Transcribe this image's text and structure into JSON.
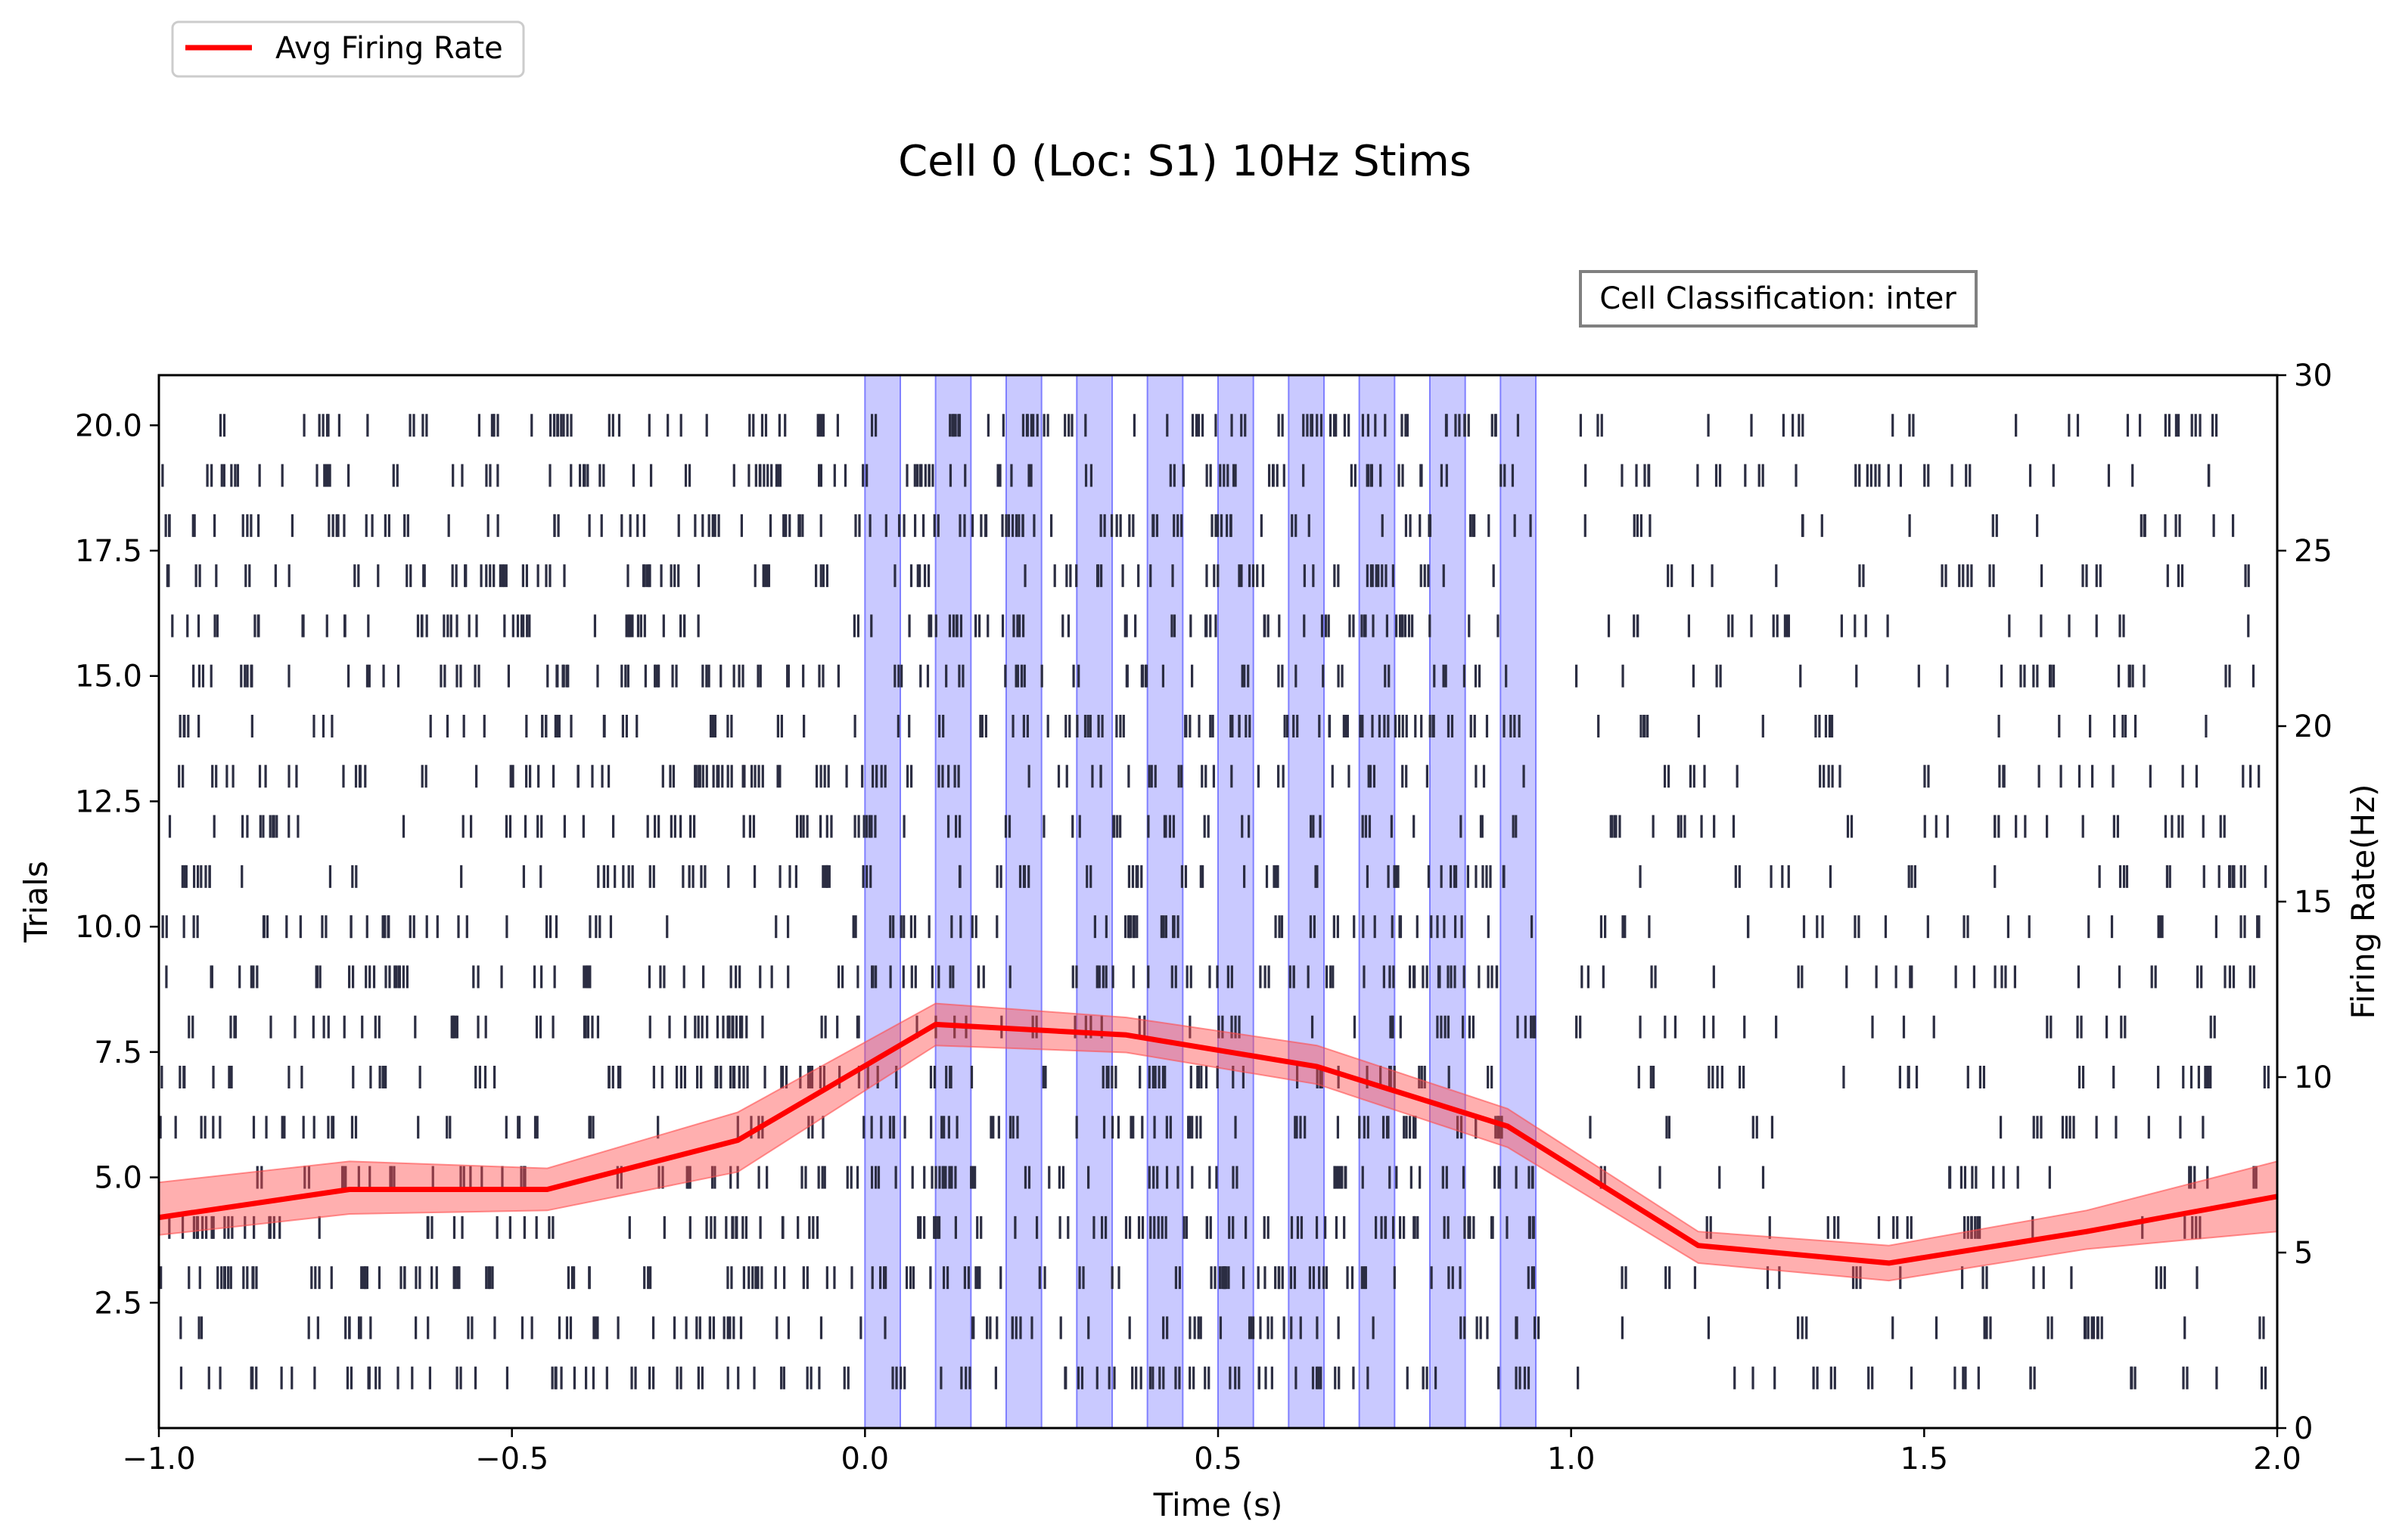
{
  "chart_data": {
    "type": "raster",
    "title": "Cell 0 (Loc: S1) 10Hz Stims",
    "xlabel": "Time (s)",
    "ylabel_left": "Trials",
    "ylabel_right": "Firing Rate(Hz)",
    "xlim": [
      -1.0,
      2.0
    ],
    "ylim_left": [
      0.0,
      21.0
    ],
    "ylim_right": [
      0,
      30
    ],
    "x_ticks": [
      -1.0,
      -0.5,
      0.0,
      0.5,
      1.0,
      1.5,
      2.0
    ],
    "x_tick_labels": [
      "−1.0",
      "−0.5",
      "0.0",
      "0.5",
      "1.0",
      "1.5",
      "2.0"
    ],
    "y_left_ticks": [
      2.5,
      5.0,
      7.5,
      10.0,
      12.5,
      15.0,
      17.5,
      20.0
    ],
    "y_left_tick_labels": [
      "2.5",
      "5.0",
      "7.5",
      "10.0",
      "12.5",
      "15.0",
      "17.5",
      "20.0"
    ],
    "y_right_ticks": [
      0,
      5,
      10,
      15,
      20,
      25,
      30
    ],
    "y_right_tick_labels": [
      "0",
      "5",
      "10",
      "15",
      "20",
      "25",
      "30"
    ],
    "classification_label": "Cell Classification: inter",
    "legend": {
      "label": "Avg Firing Rate",
      "color": "#ff0000",
      "placement": "top-left, outside axes"
    },
    "stim_windows": [
      [
        0.0,
        0.05
      ],
      [
        0.1,
        0.15
      ],
      [
        0.2,
        0.25
      ],
      [
        0.3,
        0.35
      ],
      [
        0.4,
        0.45
      ],
      [
        0.5,
        0.55
      ],
      [
        0.6,
        0.65
      ],
      [
        0.7,
        0.75
      ],
      [
        0.8,
        0.85
      ],
      [
        0.9,
        0.95
      ]
    ],
    "trials": [
      1,
      2,
      3,
      4,
      5,
      6,
      7,
      8,
      9,
      10,
      11,
      12,
      13,
      14,
      15,
      16,
      17,
      18,
      19,
      20
    ],
    "spike_rate_profile": {
      "time_breakpoints": [
        -1.0,
        0.0,
        0.95,
        1.0,
        2.0
      ],
      "baseline_density_per_trial": 36,
      "stim_density_per_trial": 42,
      "post_density_per_trial": 20
    },
    "series": [
      {
        "name": "Avg Firing Rate",
        "color": "#ff0000",
        "x": [
          -1.0,
          -0.73,
          -0.45,
          -0.18,
          0.1,
          0.37,
          0.64,
          0.91,
          1.18,
          1.45,
          1.73,
          2.0
        ],
        "y": [
          6.0,
          6.8,
          6.8,
          8.2,
          11.5,
          11.2,
          10.3,
          8.6,
          5.2,
          4.7,
          5.6,
          6.6
        ],
        "y_lower": [
          5.5,
          6.1,
          6.2,
          7.3,
          10.9,
          10.7,
          9.8,
          8.0,
          4.7,
          4.2,
          5.1,
          5.6
        ],
        "y_upper": [
          7.0,
          7.6,
          7.4,
          9.0,
          12.1,
          11.7,
          10.9,
          9.1,
          5.6,
          5.2,
          6.2,
          7.6
        ]
      }
    ],
    "colors": {
      "firing_rate": "#ff0000",
      "firing_rate_band": "#ff4d4d",
      "stim_fill": "#b0b0ff",
      "stim_edge": "#8080ff",
      "spike": "#2b2d42"
    }
  }
}
